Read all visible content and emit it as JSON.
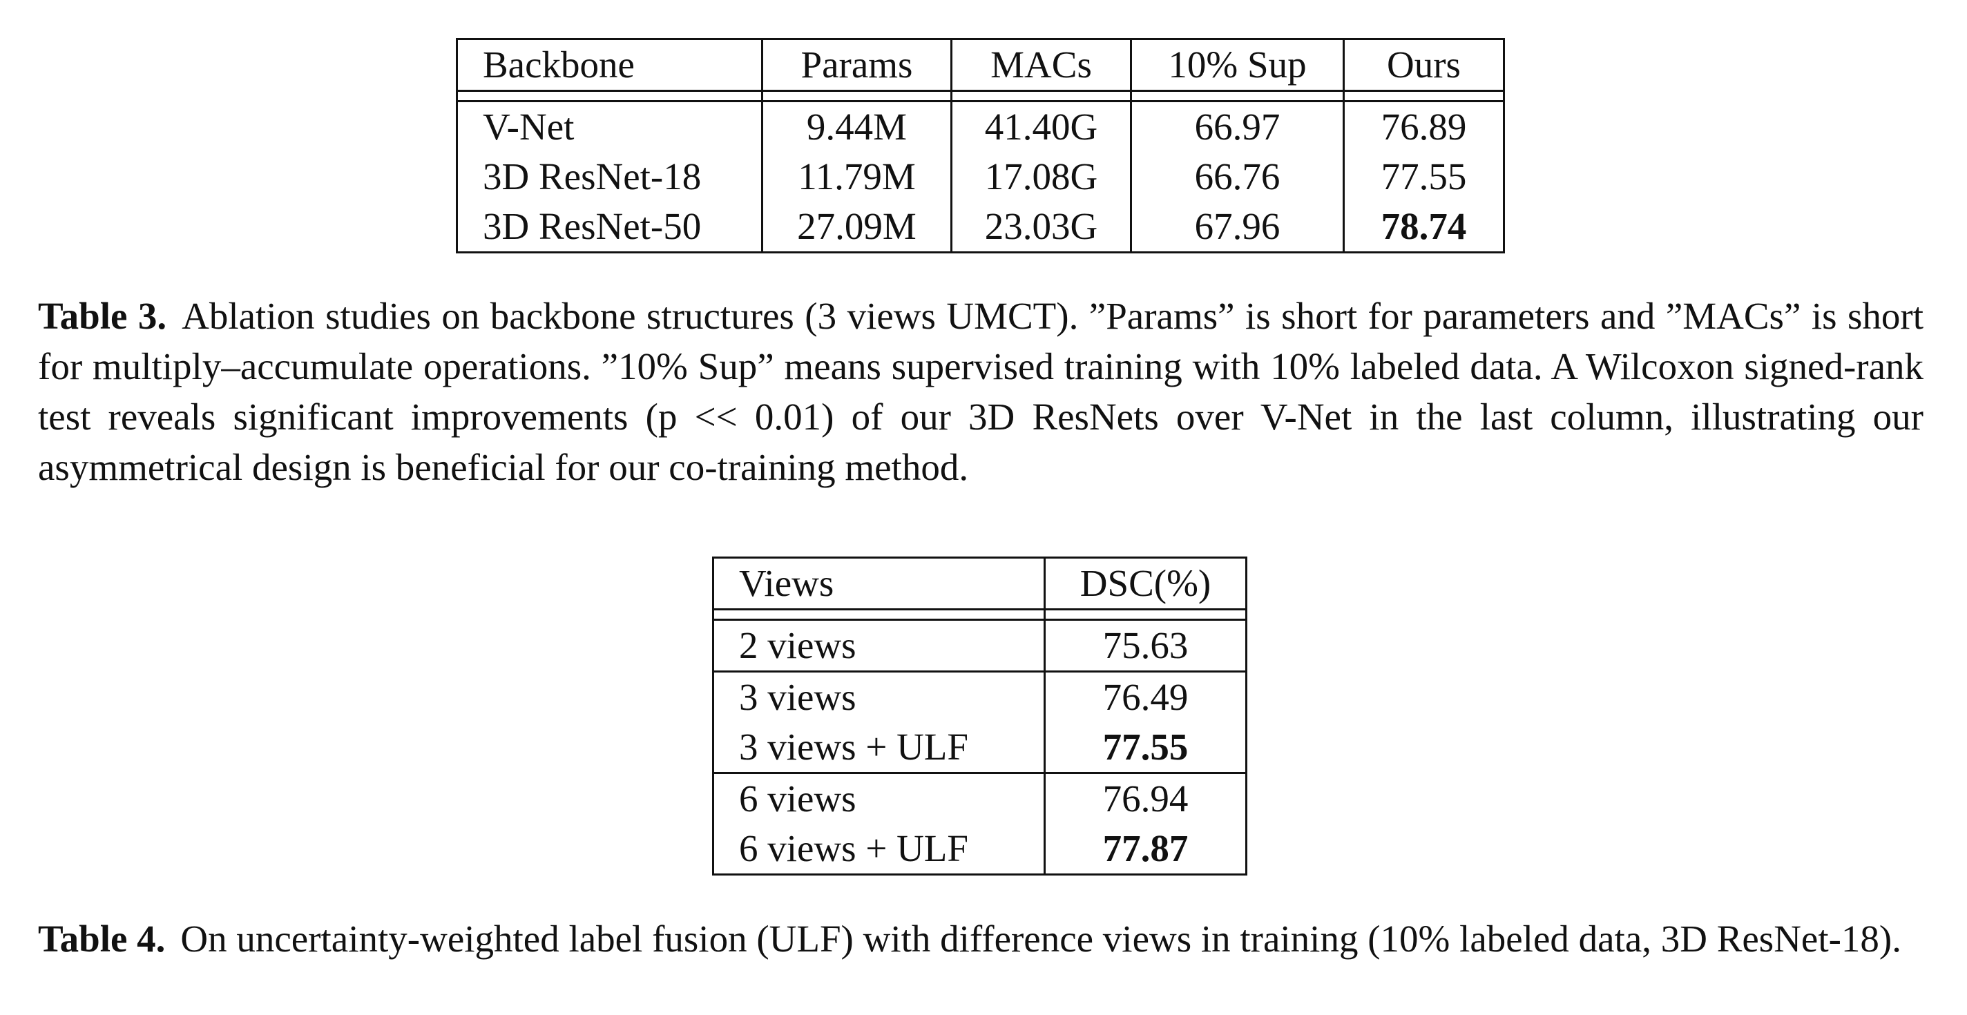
{
  "table3": {
    "headers": [
      "Backbone",
      "Params",
      "MACs",
      "10% Sup",
      "Ours"
    ],
    "rows": [
      [
        "V-Net",
        "9.44M",
        "41.40G",
        "66.97",
        "76.89"
      ],
      [
        "3D ResNet-18",
        "11.79M",
        "17.08G",
        "66.76",
        "77.55"
      ],
      [
        "3D ResNet-50",
        "27.09M",
        "23.03G",
        "67.96",
        "78.74"
      ]
    ],
    "caption_label": "Table 3.",
    "caption_text": "Ablation studies on backbone structures (3 views UMCT). ”Params” is short for parameters and ”MACs” is short for multiply–accumulate operations. ”10% Sup” means supervised training with 10% labeled data. A Wilcoxon signed-rank test reveals significant improvements (p << 0.01) of our 3D ResNets over V-Net in the last column, illustrating our asymmetrical design is beneficial for our co-training method."
  },
  "table4": {
    "headers": [
      "Views",
      "DSC(%)"
    ],
    "rows": [
      [
        "2 views",
        "75.63"
      ],
      [
        "3 views",
        "76.49"
      ],
      [
        "3 views + ULF",
        "77.55"
      ],
      [
        "6 views",
        "76.94"
      ],
      [
        "6 views + ULF",
        "77.87"
      ]
    ],
    "caption_label": "Table 4.",
    "caption_text": "On uncertainty-weighted label fusion (ULF) with difference views in training (10% labeled data, 3D ResNet-18)."
  }
}
